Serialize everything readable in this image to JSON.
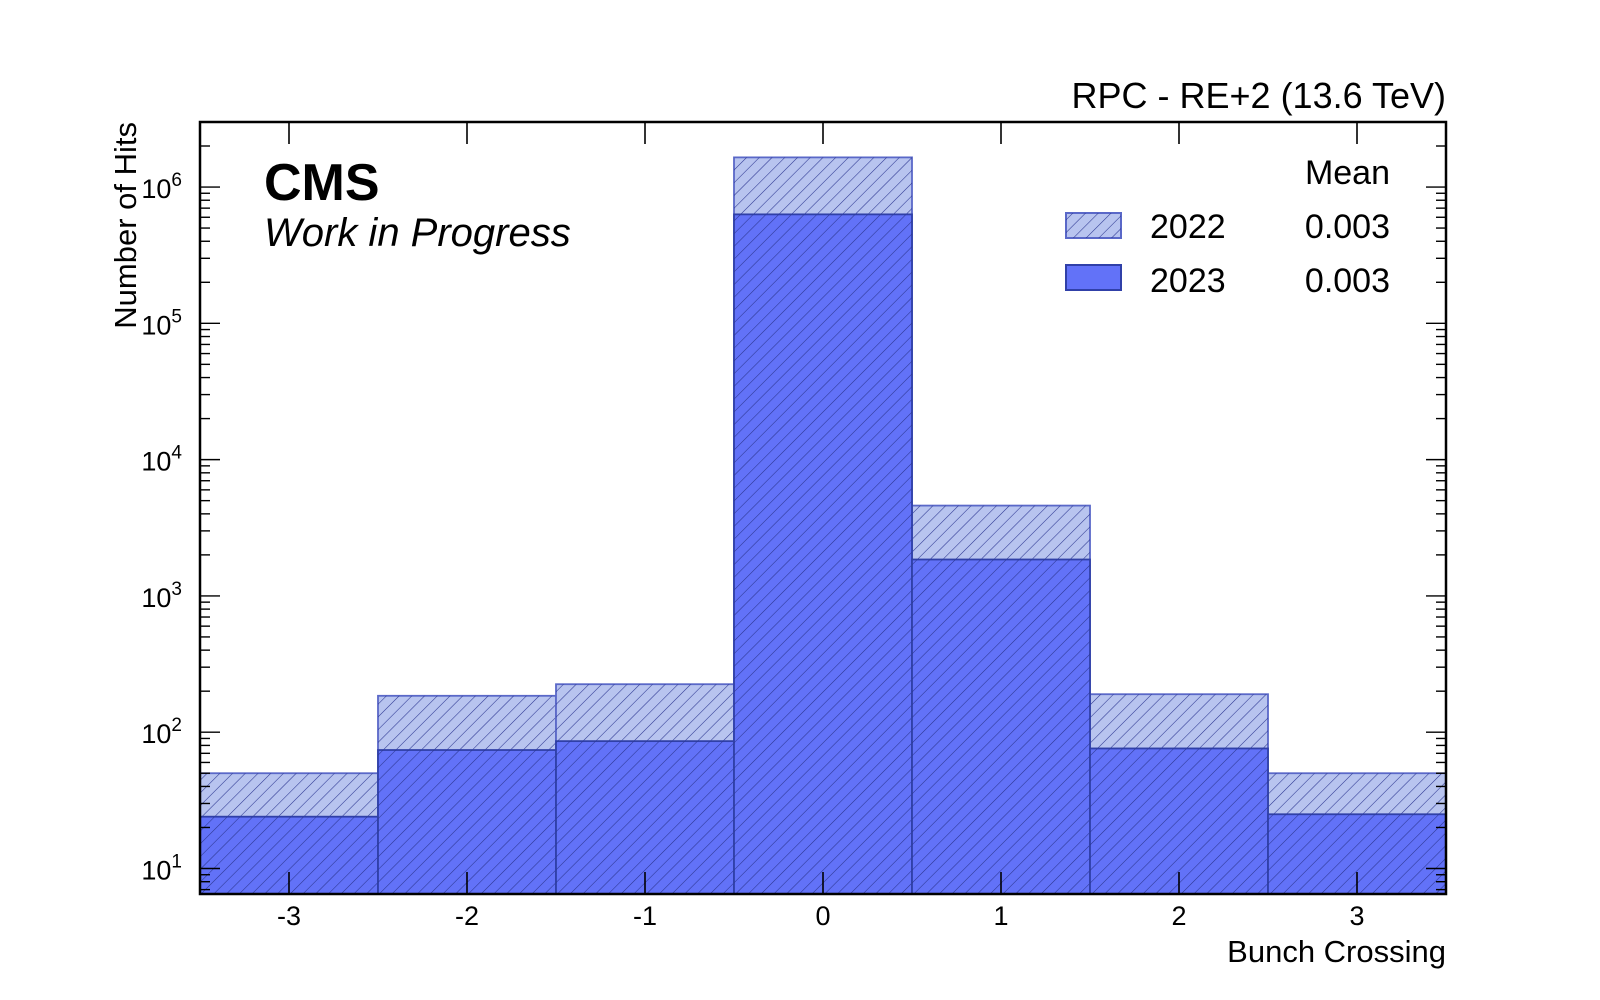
{
  "header": {
    "experiment": "CMS",
    "status": "Work in Progress",
    "run_label": "RPC - RE+2 (13.6 TeV)"
  },
  "legend": {
    "header": "Mean",
    "entries": [
      {
        "name": "2022",
        "mean": "0.003"
      },
      {
        "name": "2023",
        "mean": "0.003"
      }
    ]
  },
  "colors": {
    "series_2022_fill": "#b8c4ef",
    "series_2022_edge": "#5a68c8",
    "series_2023_fill": "#6272f8",
    "series_2023_edge": "#3040a8",
    "hatch": "#2b3590"
  },
  "chart_data": {
    "type": "bar",
    "histogram": true,
    "xlabel": "Bunch Crossing",
    "ylabel": "Number of Hits",
    "x_ticks": [
      "-3",
      "-2",
      "-1",
      "0",
      "1",
      "2",
      "3"
    ],
    "y_ticks": [
      {
        "base": "10",
        "exp": "1"
      },
      {
        "base": "10",
        "exp": "2"
      },
      {
        "base": "10",
        "exp": "3"
      },
      {
        "base": "10",
        "exp": "4"
      },
      {
        "base": "10",
        "exp": "5"
      },
      {
        "base": "10",
        "exp": "6"
      }
    ],
    "xlim": [
      -3.5,
      3.5
    ],
    "ylim": [
      6.5,
      3000000
    ],
    "yscale": "log",
    "grid": false,
    "legend_position": "top-right",
    "categories": [
      -3,
      -2,
      -1,
      0,
      1,
      2,
      3
    ],
    "series": [
      {
        "name": "2022",
        "values": [
          50,
          185,
          225,
          1650000,
          4600,
          190,
          50
        ],
        "style": "light-hatched"
      },
      {
        "name": "2023",
        "values": [
          24,
          74,
          86,
          630000,
          1850,
          76,
          25
        ],
        "style": "solid-hatched"
      }
    ]
  }
}
